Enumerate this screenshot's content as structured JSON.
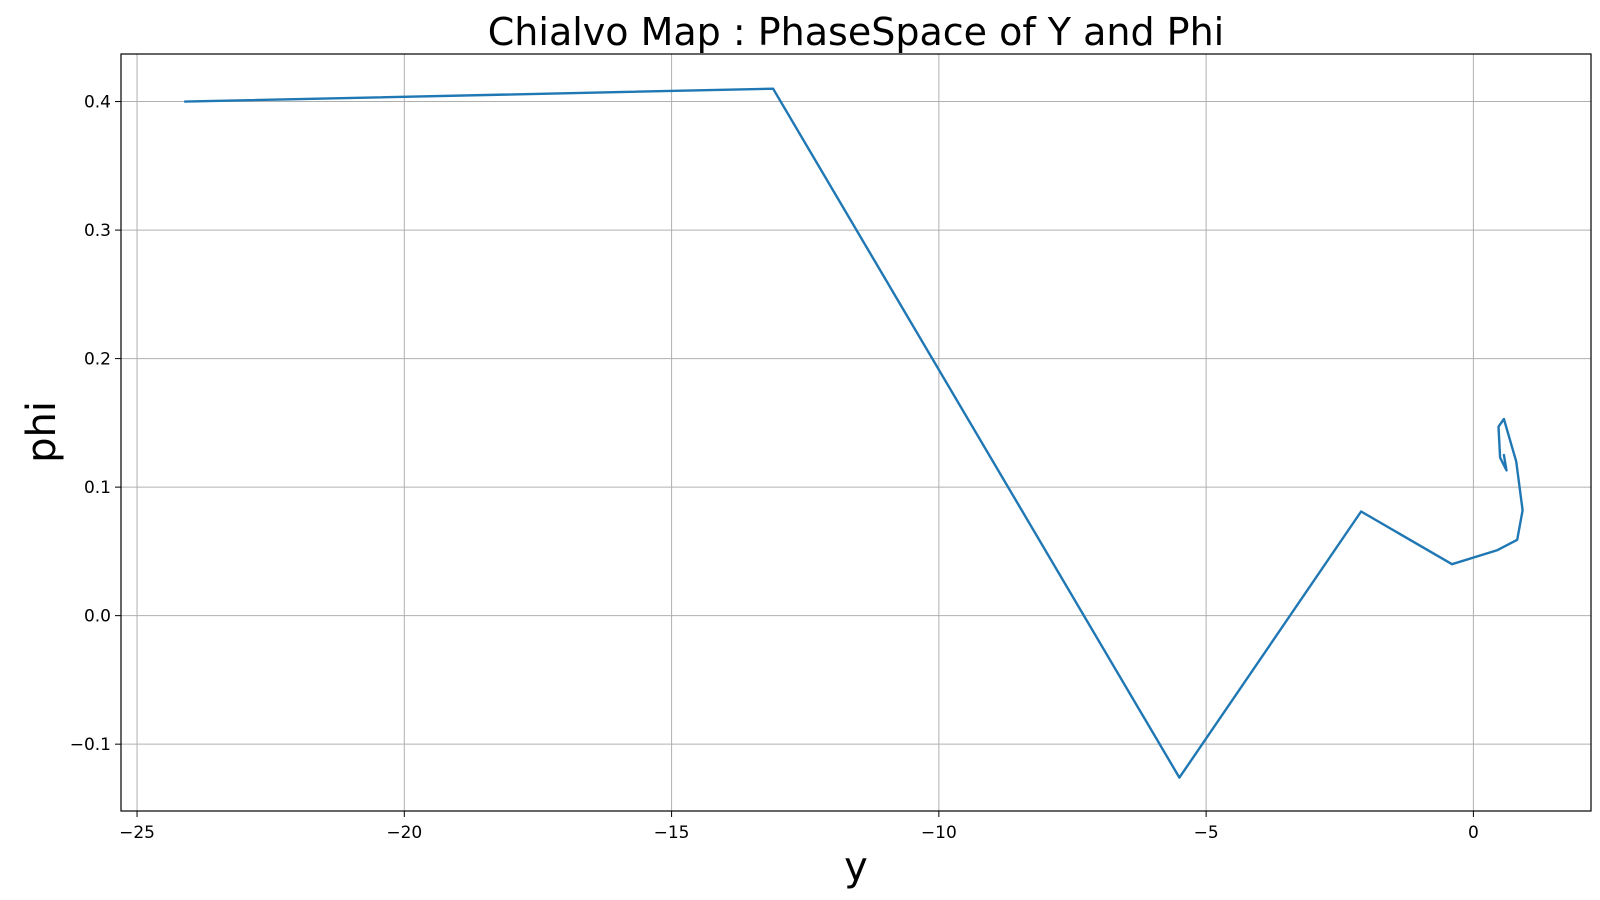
{
  "chart_data": {
    "type": "line",
    "title": "Chialvo Map : PhaseSpace of Y and Phi",
    "xlabel": "y",
    "ylabel": "phi",
    "xlim": [
      -25.3,
      2.2
    ],
    "ylim": [
      -0.152,
      0.437
    ],
    "xticks": [
      -25,
      -20,
      -15,
      -10,
      -5,
      0
    ],
    "xtick_labels": [
      "−25",
      "−20",
      "−15",
      "−10",
      "−5",
      "0"
    ],
    "yticks": [
      -0.1,
      0.0,
      0.1,
      0.2,
      0.3,
      0.4
    ],
    "ytick_labels": [
      "−0.1",
      "0.0",
      "0.1",
      "0.2",
      "0.3",
      "0.4"
    ],
    "grid": true,
    "series": [
      {
        "color": "#1f77b4",
        "x": [
          -24.1,
          -13.1,
          -5.5,
          -2.1,
          -0.4,
          0.45,
          0.82,
          0.92,
          0.8,
          0.57,
          0.47,
          0.5,
          0.62,
          0.57
        ],
        "y": [
          0.4,
          0.41,
          -0.126,
          0.081,
          0.04,
          0.051,
          0.059,
          0.082,
          0.12,
          0.153,
          0.147,
          0.123,
          0.113,
          0.125
        ]
      }
    ]
  }
}
